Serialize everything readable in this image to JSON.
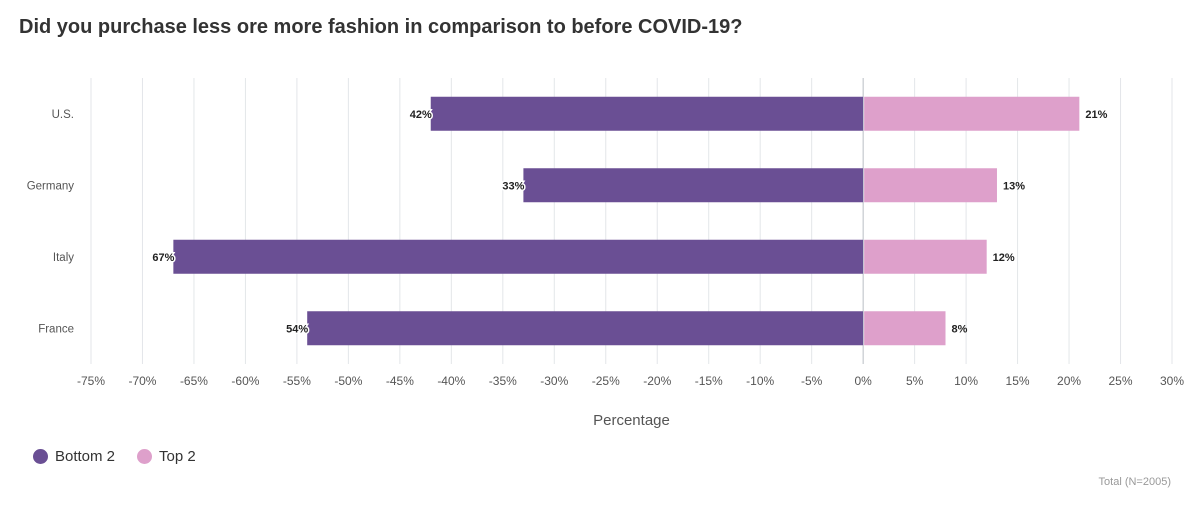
{
  "title": "Did you purchase less ore more fashion in comparison to before COVID-19?",
  "note": "Total (N=2005)",
  "colors": {
    "bottom": "#6a4f94",
    "top": "#dea0cb",
    "grid": "#e3e6e9",
    "zero": "#b8bec4"
  },
  "legend": [
    {
      "label": "Bottom 2",
      "color": "#6a4f94"
    },
    {
      "label": "Top 2",
      "color": "#dea0cb"
    }
  ],
  "chart_data": {
    "type": "bar",
    "orientation": "horizontal",
    "stacked": "diverging",
    "title": "Did you purchase less ore more fashion in comparison to before COVID-19?",
    "xlabel": "Percentage",
    "ylabel": "",
    "categories": [
      "U.S.",
      "Germany",
      "Italy",
      "France"
    ],
    "series": [
      {
        "name": "Bottom 2",
        "values": [
          -42,
          -33,
          -67,
          -54
        ],
        "labels": [
          "42%",
          "33%",
          "67%",
          "54%"
        ]
      },
      {
        "name": "Top 2",
        "values": [
          21,
          13,
          12,
          8
        ],
        "labels": [
          "21%",
          "13%",
          "12%",
          "8%"
        ]
      }
    ],
    "xlim": [
      -75,
      30
    ],
    "xticks": [
      "-75%",
      "-70%",
      "-65%",
      "-60%",
      "-55%",
      "-50%",
      "-45%",
      "-40%",
      "-35%",
      "-30%",
      "-25%",
      "-20%",
      "-15%",
      "-10%",
      "-5%",
      "0%",
      "5%",
      "10%",
      "15%",
      "20%",
      "25%",
      "30%"
    ],
    "grid": true,
    "legend_position": "bottom-left"
  }
}
